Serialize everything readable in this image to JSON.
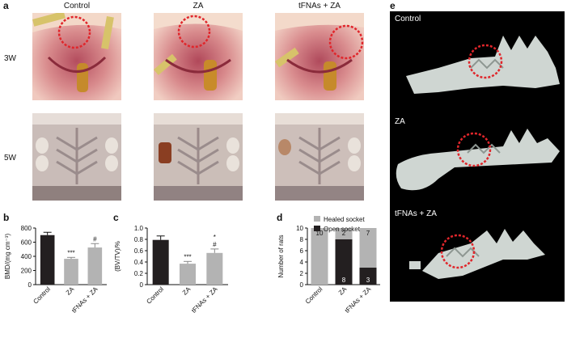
{
  "panel_labels": {
    "a": "a",
    "b": "b",
    "c": "c",
    "d": "d",
    "e": "e"
  },
  "photo_panel": {
    "columns": [
      "Control",
      "ZA",
      "tFNAs + ZA"
    ],
    "rows": [
      "3W",
      "5W"
    ]
  },
  "ct_panel": {
    "labels": [
      "Control",
      "ZA",
      "tFNAs + ZA"
    ]
  },
  "colors": {
    "dark_bar": "#231f20",
    "grey_bar": "#b3b3b3",
    "circle": "#e0262b"
  },
  "chart_data": [
    {
      "id": "b",
      "type": "bar",
      "categories": [
        "Control",
        "ZA",
        "tFNAs + ZA"
      ],
      "values": [
        700,
        365,
        525
      ],
      "errors": [
        40,
        20,
        55
      ],
      "annotations": [
        "",
        "***",
        "#"
      ],
      "ylabel": "BMD/(mg cm⁻³)",
      "ylim": [
        0,
        800
      ],
      "yticks": [
        "0",
        "200",
        "400",
        "600",
        "800"
      ]
    },
    {
      "id": "c",
      "type": "bar",
      "categories": [
        "Control",
        "ZA",
        "tFNAs + ZA"
      ],
      "values": [
        0.79,
        0.37,
        0.56
      ],
      "errors": [
        0.07,
        0.04,
        0.07
      ],
      "annotations": [
        "",
        "***",
        "#"
      ],
      "annotations2": [
        "",
        "",
        "*"
      ],
      "ylabel": "(BV/TV)/%",
      "ylim": [
        0,
        1.0
      ],
      "yticks": [
        "0",
        "0.2",
        "0.4",
        "0.6",
        "0.8",
        "1.0"
      ]
    },
    {
      "id": "d",
      "type": "bar",
      "stacked": true,
      "categories": [
        "Control",
        "ZA",
        "tFNAs + ZA"
      ],
      "series": [
        {
          "name": "Open socket",
          "values": [
            0,
            8,
            3
          ],
          "labels": [
            "",
            "8",
            "3"
          ]
        },
        {
          "name": "Healed socket",
          "values": [
            10,
            2,
            7
          ],
          "labels": [
            "10",
            "2",
            "7"
          ]
        }
      ],
      "ylabel": "Number of rats",
      "ylim": [
        0,
        10
      ],
      "yticks": [
        "0",
        "2",
        "4",
        "6",
        "8",
        "10"
      ],
      "legend": [
        "Healed socket",
        "Open socket"
      ]
    }
  ]
}
